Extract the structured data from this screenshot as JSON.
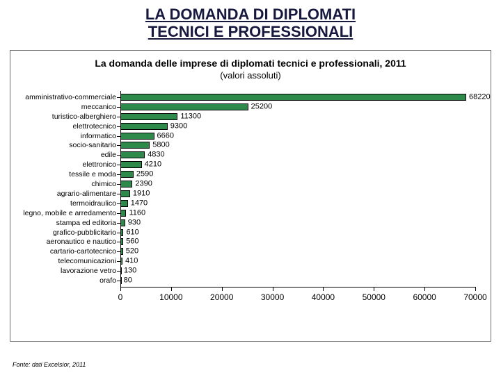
{
  "main_title": "LA DOMANDA DI DIPLOMATI\nTECNICI E PROFESSIONALI",
  "chart": {
    "type": "bar",
    "orientation": "horizontal",
    "title": "La domanda delle imprese di diplomati tecnici e professionali, 2011",
    "subtitle": "(valori assoluti)",
    "bar_color": "#2e8a4a",
    "bar_border_color": "#000000",
    "background_color": "#ffffff",
    "label_fontsize": 10.5,
    "value_fontsize": 11,
    "tick_fontsize": 12,
    "xlim": [
      0,
      70000
    ],
    "xtick_step": 10000,
    "xticks": [
      0,
      10000,
      20000,
      30000,
      40000,
      50000,
      60000,
      70000
    ],
    "categories": [
      "amministrativo-commerciale",
      "meccanico",
      "turistico-alberghiero",
      "elettrotecnico",
      "informatico",
      "socio-sanitario",
      "edile",
      "elettronico",
      "tessile e moda",
      "chimico",
      "agrario-alimentare",
      "termoidraulico",
      "legno, mobile e arredamento",
      "stampa ed editoria",
      "grafico-pubblicitario",
      "aeronautico e nautico",
      "cartario-cartotecnico",
      "telecomunicazioni",
      "lavorazione vetro",
      "orafo"
    ],
    "values": [
      68220,
      25200,
      11300,
      9300,
      6660,
      5800,
      4830,
      4210,
      2590,
      2390,
      1910,
      1470,
      1160,
      930,
      610,
      560,
      520,
      410,
      130,
      80
    ]
  },
  "source": "Fonte: dati Excelsior, 2011"
}
